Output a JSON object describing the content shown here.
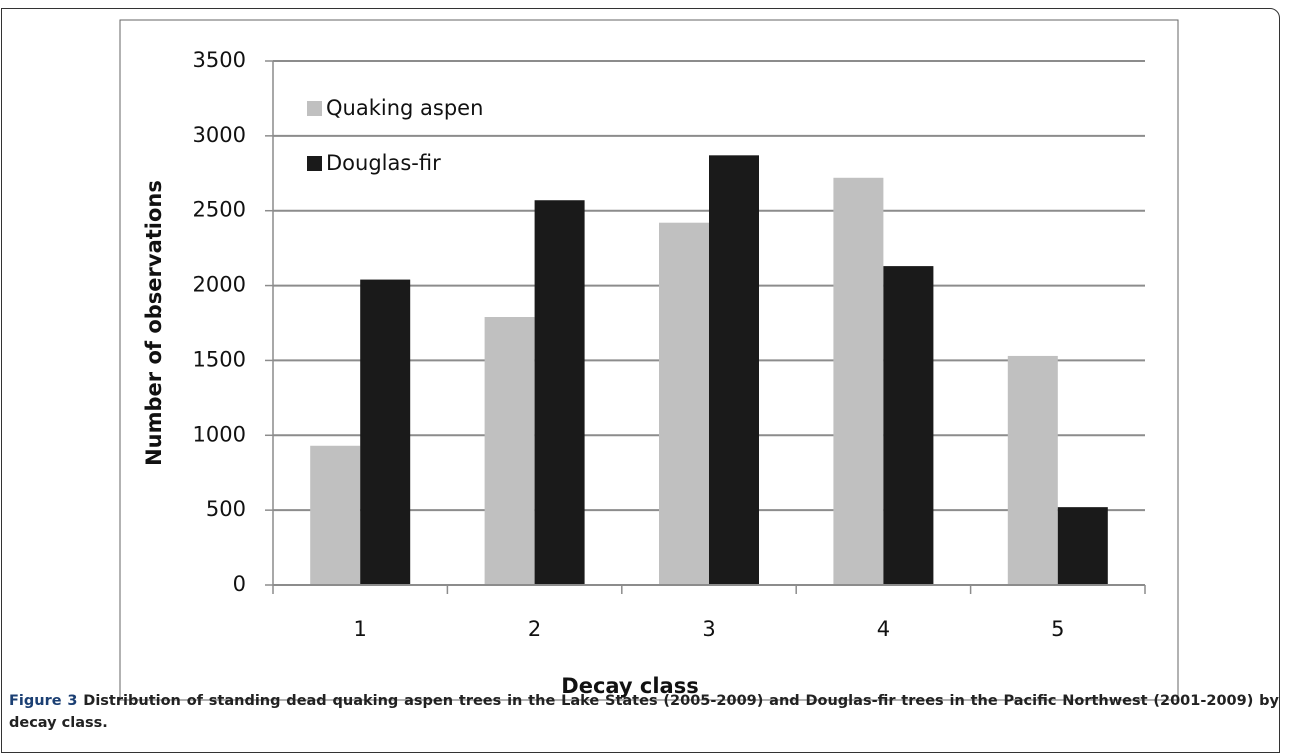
{
  "chart_data": {
    "type": "bar",
    "x_label": "Decay class",
    "y_label": "Number of observations",
    "categories": [
      "1",
      "2",
      "3",
      "4",
      "5"
    ],
    "series": [
      {
        "name": "Quaking aspen",
        "color": "#c0c0c0",
        "values": [
          930,
          1790,
          2420,
          2720,
          1530
        ]
      },
      {
        "name": "Douglas-fir",
        "color": "#1a1a1a",
        "values": [
          2040,
          2570,
          2870,
          2130,
          520
        ]
      }
    ],
    "ylim": [
      0,
      3500
    ],
    "yticks": [
      0,
      500,
      1000,
      1500,
      2000,
      2500,
      3000,
      3500
    ],
    "grid": true,
    "legend": "upper-left"
  },
  "caption": {
    "label": "Figure 3",
    "text": "Distribution of standing dead quaking aspen trees in the Lake States (2005-2009) and Douglas-fir trees in the Pacific Northwest (2001-2009) by decay class."
  }
}
